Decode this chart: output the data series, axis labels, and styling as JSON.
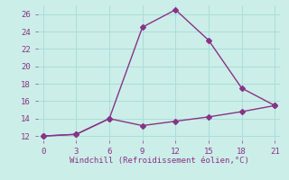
{
  "x_upper": [
    0,
    3,
    6,
    9,
    12,
    15,
    18,
    21
  ],
  "y_upper": [
    12,
    12.2,
    14,
    24.5,
    26.5,
    23,
    17.5,
    15.5
  ],
  "x_lower": [
    0,
    3,
    6,
    9,
    12,
    15,
    18,
    21
  ],
  "y_lower": [
    12,
    12.2,
    14,
    13.2,
    13.7,
    14.2,
    14.8,
    15.5
  ],
  "line_color": "#883388",
  "bg_color": "#cceee8",
  "grid_color": "#aaddda",
  "xlabel": "Windchill (Refroidissement éolien,°C)",
  "xlim": [
    -0.5,
    21.5
  ],
  "ylim": [
    11.5,
    27.0
  ],
  "xticks": [
    0,
    3,
    6,
    9,
    12,
    15,
    18,
    21
  ],
  "yticks": [
    12,
    14,
    16,
    18,
    20,
    22,
    24,
    26
  ],
  "xlabel_color": "#883388",
  "tick_color": "#883388",
  "marker": "D",
  "markersize": 3,
  "linewidth": 1.0
}
